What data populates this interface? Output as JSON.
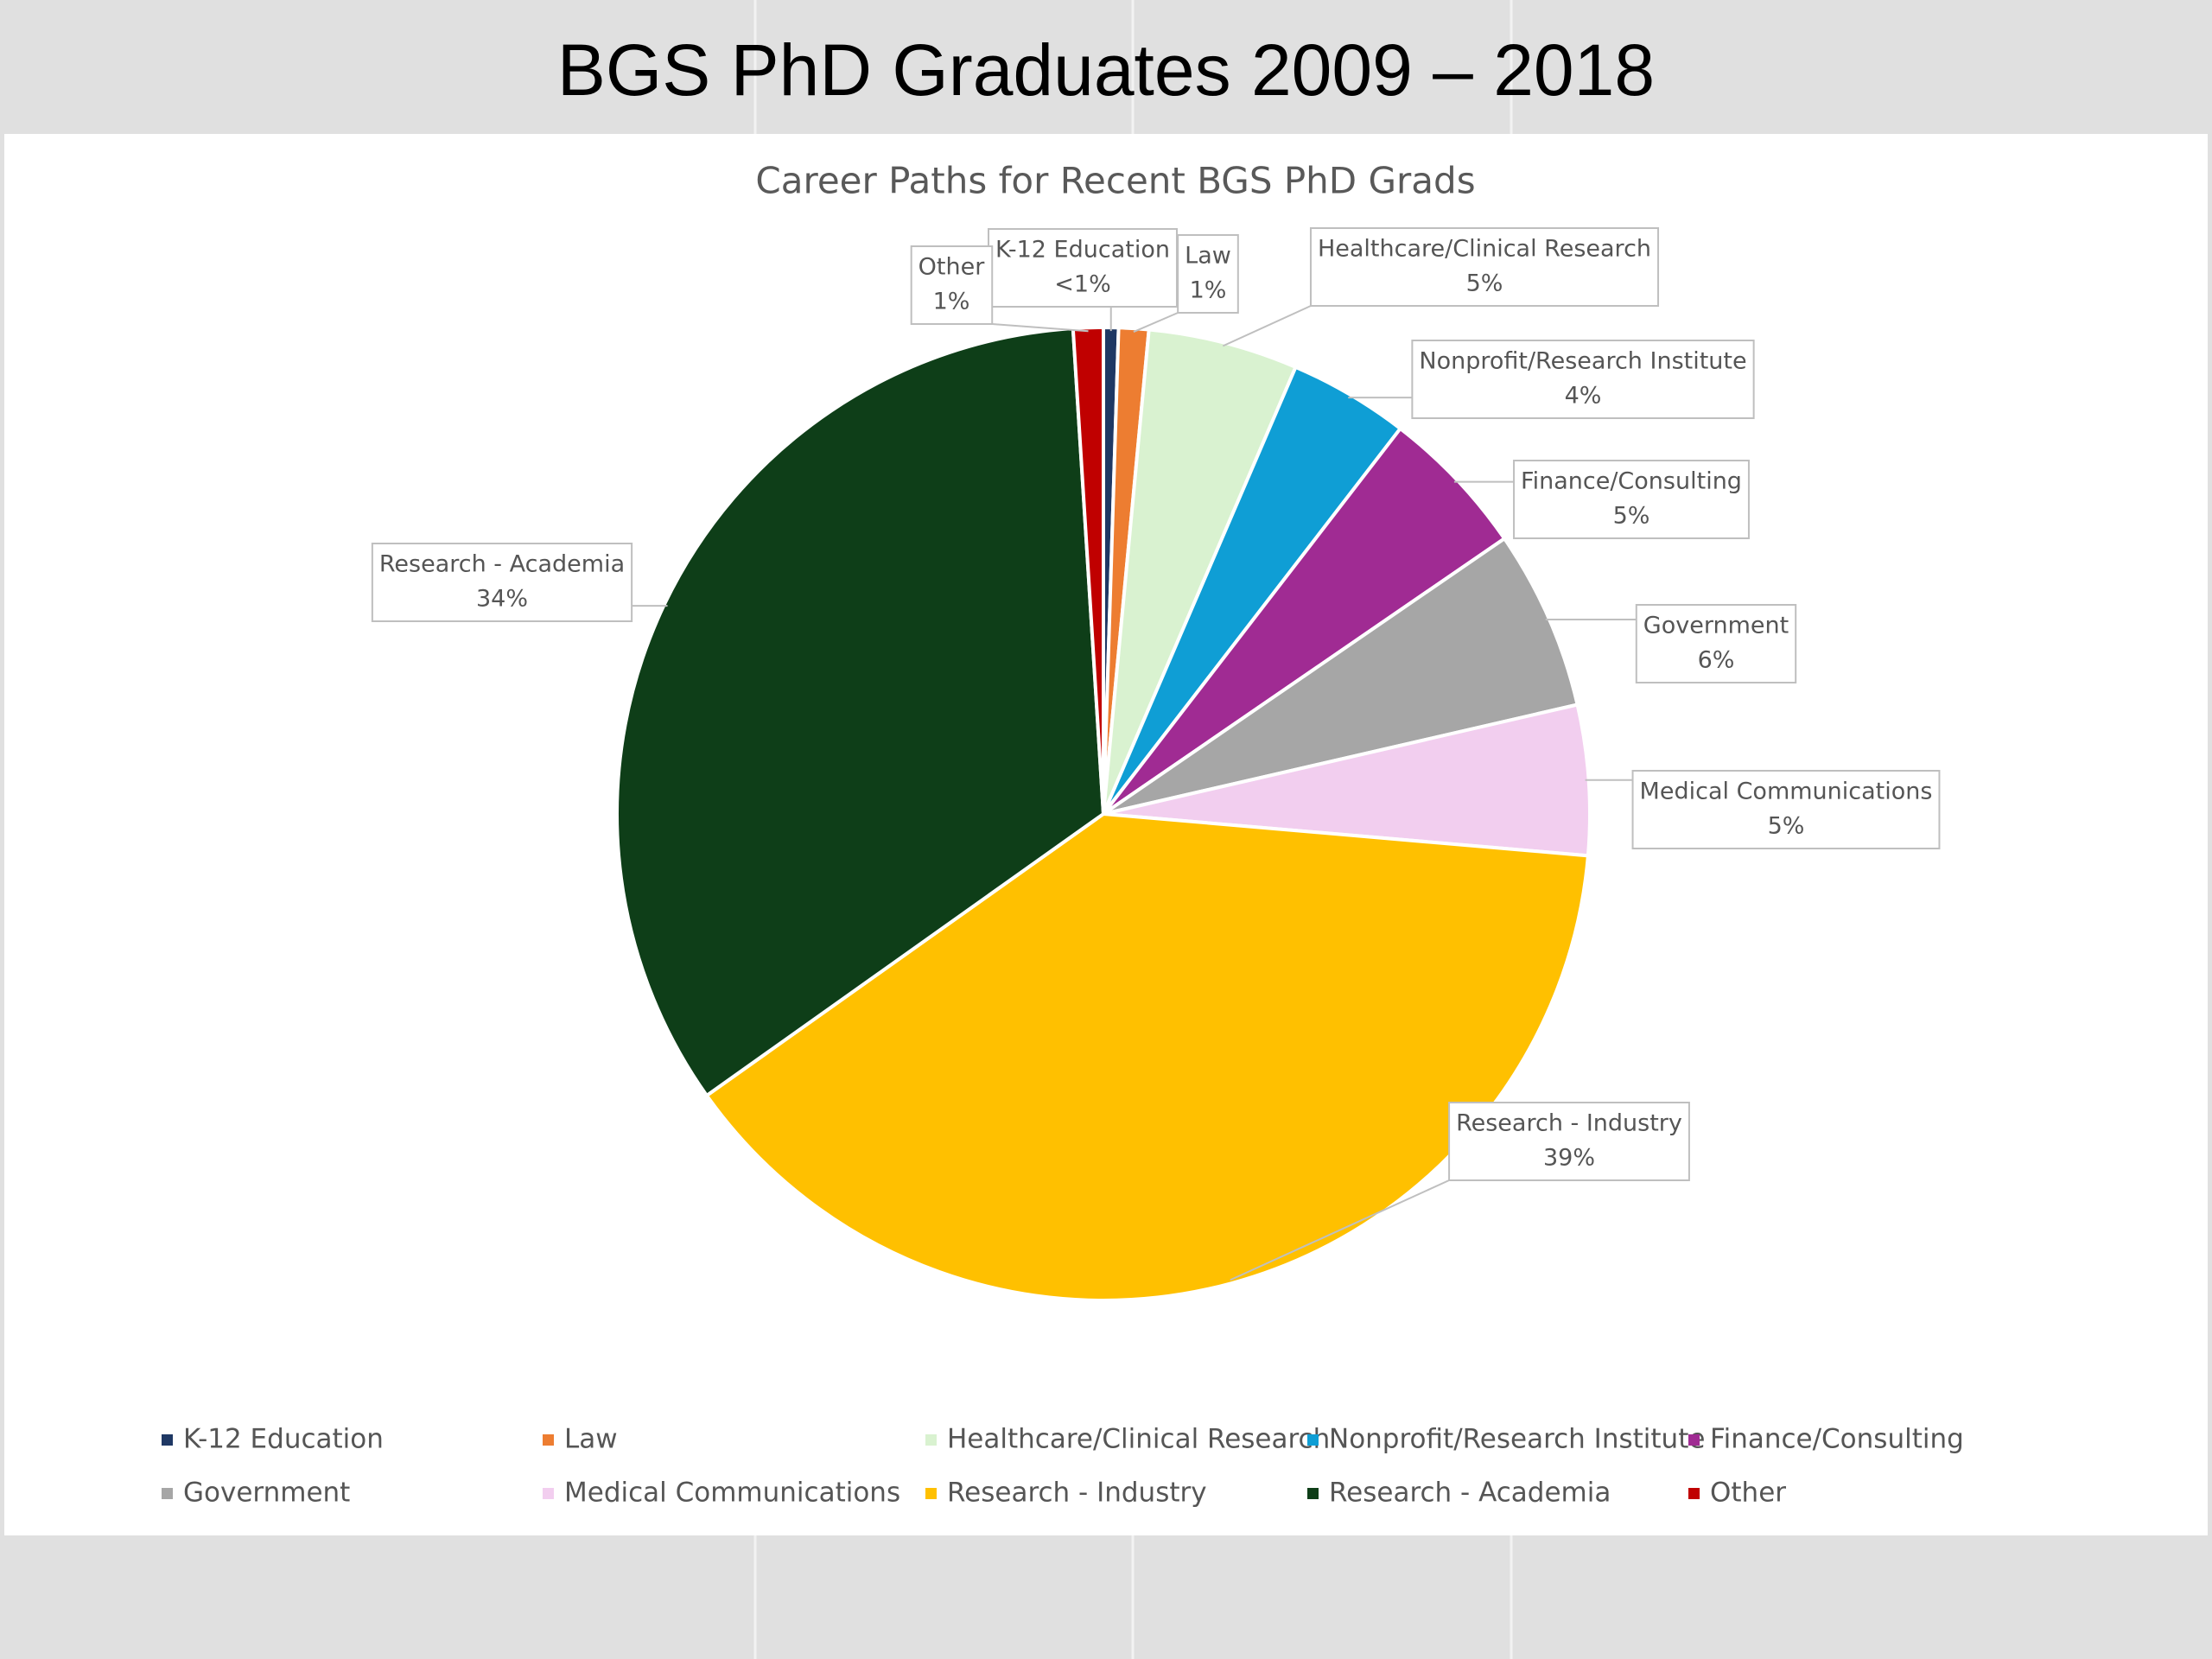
{
  "title": "BGS PhD Graduates 2009 – 2018",
  "chart_data": {
    "type": "pie",
    "title": "Career Paths for Recent BGS PhD Grads",
    "categories": [
      "K-12 Education",
      "Law",
      "Healthcare/Clinical Research",
      "Nonprofit/Research Institute",
      "Finance/Consulting",
      "Government",
      "Medical Communications",
      "Research - Industry",
      "Research - Academia",
      "Other"
    ],
    "values": [
      0.5,
      1,
      5,
      4,
      5,
      6,
      5,
      39,
      34,
      1
    ],
    "value_labels": [
      "<1%",
      "1%",
      "5%",
      "4%",
      "5%",
      "6%",
      "5%",
      "39%",
      "34%",
      "1%"
    ],
    "colors": [
      "#1f3864",
      "#ed7d31",
      "#d9f2d0",
      "#0f9ed5",
      "#a02b93",
      "#a6a6a6",
      "#f2ceef",
      "#ffc000",
      "#0e3e18",
      "#c00000"
    ],
    "legend": "bottom"
  }
}
